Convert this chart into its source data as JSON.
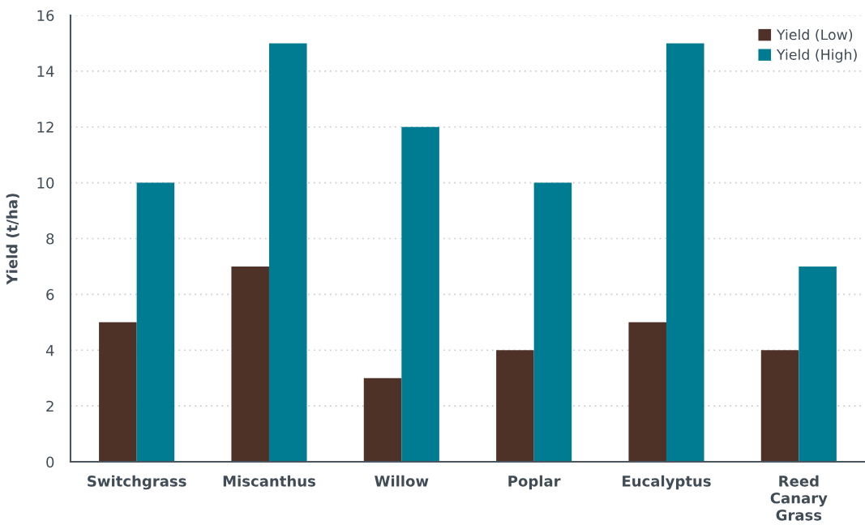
{
  "chart_data": {
    "type": "bar",
    "ylabel": "Yield (t/ha)",
    "categories": [
      "Switchgrass",
      "Miscanthus",
      "Willow",
      "Poplar",
      "Eucalyptus",
      "Reed Canary Grass"
    ],
    "series": [
      {
        "name": "Yield (Low)",
        "color": "#4e3228",
        "values": [
          5,
          7,
          3,
          4,
          5,
          4
        ]
      },
      {
        "name": "Yield (High)",
        "color": "#007c92",
        "values": [
          10,
          15,
          12,
          10,
          15,
          7
        ]
      }
    ],
    "ylim": [
      0,
      16
    ],
    "yticks": [
      0,
      2,
      4,
      6,
      8,
      10,
      12,
      14,
      16
    ],
    "grid": "y",
    "legend": "top right"
  }
}
